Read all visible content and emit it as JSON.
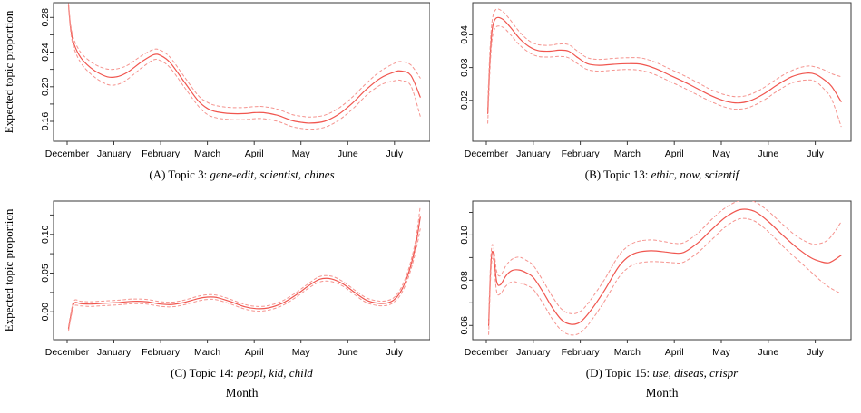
{
  "figure": {
    "ylabel": "Expected topic proportion",
    "xlabel": "Month",
    "colors": {
      "mean_line": "#f0564f",
      "ci_line": "#f5938e",
      "axis": "#3a3a3a",
      "text": "#000000",
      "background": "#ffffff"
    }
  },
  "chart_data": [
    {
      "id": "A",
      "type": "line",
      "caption": {
        "prefix": "(A) Topic 3:",
        "keywords": "gene-edit, scientist, chines"
      },
      "has_ylabel": true,
      "xlim": [
        -0.29,
        7.76
      ],
      "ylim": [
        0.137,
        0.297
      ],
      "x_ticks": [
        {
          "pos": 0,
          "label": "December"
        },
        {
          "pos": 1,
          "label": "January"
        },
        {
          "pos": 2,
          "label": "February"
        },
        {
          "pos": 3,
          "label": "March"
        },
        {
          "pos": 4,
          "label": "April"
        },
        {
          "pos": 5,
          "label": "May"
        },
        {
          "pos": 6,
          "label": "June"
        },
        {
          "pos": 7,
          "label": "July"
        }
      ],
      "y_ticks": [
        {
          "pos": 0.16,
          "label": "0.16"
        },
        {
          "pos": 0.18,
          "label": ""
        },
        {
          "pos": 0.2,
          "label": "0.20"
        },
        {
          "pos": 0.22,
          "label": ""
        },
        {
          "pos": 0.24,
          "label": "0.24"
        },
        {
          "pos": 0.26,
          "label": ""
        },
        {
          "pos": 0.28,
          "label": "0.28"
        }
      ],
      "x": [
        0.03,
        0.08,
        0.15,
        0.3,
        0.5,
        0.7,
        0.9,
        1.1,
        1.3,
        1.6,
        1.85,
        2.0,
        2.2,
        2.5,
        2.8,
        3.0,
        3.2,
        3.5,
        3.8,
        4.0,
        4.2,
        4.5,
        4.8,
        5.0,
        5.2,
        5.5,
        5.8,
        6.1,
        6.4,
        6.7,
        7.0,
        7.15,
        7.35,
        7.55
      ],
      "series": [
        {
          "name": "expected proportion",
          "style": "solid",
          "values": [
            0.294,
            0.266,
            0.249,
            0.233,
            0.222,
            0.215,
            0.211,
            0.212,
            0.217,
            0.229,
            0.237,
            0.236,
            0.228,
            0.206,
            0.184,
            0.175,
            0.171,
            0.169,
            0.169,
            0.17,
            0.17,
            0.167,
            0.161,
            0.159,
            0.158,
            0.16,
            0.168,
            0.181,
            0.197,
            0.21,
            0.217,
            0.218,
            0.213,
            0.188
          ]
        },
        {
          "name": "upper 95% CI",
          "style": "dashed",
          "values": [
            0.296,
            0.27,
            0.254,
            0.239,
            0.229,
            0.223,
            0.22,
            0.221,
            0.225,
            0.236,
            0.243,
            0.242,
            0.234,
            0.212,
            0.19,
            0.182,
            0.178,
            0.176,
            0.176,
            0.177,
            0.177,
            0.174,
            0.168,
            0.166,
            0.165,
            0.167,
            0.175,
            0.188,
            0.204,
            0.218,
            0.227,
            0.229,
            0.225,
            0.21
          ]
        },
        {
          "name": "lower 95% CI",
          "style": "dashed",
          "values": [
            0.292,
            0.262,
            0.244,
            0.227,
            0.215,
            0.207,
            0.202,
            0.203,
            0.209,
            0.222,
            0.231,
            0.23,
            0.222,
            0.2,
            0.178,
            0.168,
            0.164,
            0.162,
            0.162,
            0.163,
            0.163,
            0.16,
            0.154,
            0.152,
            0.151,
            0.153,
            0.161,
            0.174,
            0.19,
            0.202,
            0.207,
            0.207,
            0.201,
            0.166
          ]
        }
      ]
    },
    {
      "id": "B",
      "type": "line",
      "caption": {
        "prefix": "(B) Topic 13:",
        "keywords": "ethic, now, scientif"
      },
      "has_ylabel": false,
      "xlim": [
        -0.29,
        7.76
      ],
      "ylim": [
        0.0075,
        0.0498
      ],
      "x_ticks": [
        {
          "pos": 0,
          "label": "December"
        },
        {
          "pos": 1,
          "label": "January"
        },
        {
          "pos": 2,
          "label": "February"
        },
        {
          "pos": 3,
          "label": "March"
        },
        {
          "pos": 4,
          "label": "April"
        },
        {
          "pos": 5,
          "label": "May"
        },
        {
          "pos": 6,
          "label": "June"
        },
        {
          "pos": 7,
          "label": "July"
        }
      ],
      "y_ticks": [
        {
          "pos": 0.02,
          "label": "0.02"
        },
        {
          "pos": 0.03,
          "label": "0.03"
        },
        {
          "pos": 0.04,
          "label": "0.04"
        }
      ],
      "x": [
        0.03,
        0.07,
        0.12,
        0.2,
        0.35,
        0.5,
        0.7,
        0.9,
        1.1,
        1.35,
        1.55,
        1.75,
        1.95,
        2.15,
        2.4,
        2.7,
        3.0,
        3.3,
        3.6,
        3.9,
        4.2,
        4.5,
        4.8,
        5.1,
        5.35,
        5.6,
        5.9,
        6.2,
        6.5,
        6.8,
        7.0,
        7.2,
        7.35,
        7.55
      ],
      "series": [
        {
          "name": "expected proportion",
          "style": "solid",
          "values": [
            0.016,
            0.03,
            0.041,
            0.045,
            0.0447,
            0.0425,
            0.039,
            0.0365,
            0.0352,
            0.035,
            0.0353,
            0.035,
            0.033,
            0.0312,
            0.0307,
            0.031,
            0.0312,
            0.031,
            0.0297,
            0.0277,
            0.0257,
            0.0235,
            0.0213,
            0.0197,
            0.0192,
            0.0198,
            0.0219,
            0.0248,
            0.0272,
            0.0283,
            0.028,
            0.0262,
            0.0242,
            0.0196
          ]
        },
        {
          "name": "upper 95% CI",
          "style": "dashed",
          "values": [
            0.019,
            0.033,
            0.0438,
            0.0477,
            0.0471,
            0.0447,
            0.041,
            0.0383,
            0.037,
            0.0368,
            0.0372,
            0.037,
            0.0349,
            0.033,
            0.0325,
            0.0328,
            0.033,
            0.0329,
            0.0316,
            0.0296,
            0.0276,
            0.0254,
            0.0231,
            0.0216,
            0.0211,
            0.0217,
            0.0238,
            0.0267,
            0.0291,
            0.0304,
            0.0302,
            0.0292,
            0.0281,
            0.0272
          ]
        },
        {
          "name": "lower 95% CI",
          "style": "dashed",
          "values": [
            0.013,
            0.027,
            0.0382,
            0.0423,
            0.0423,
            0.0403,
            0.037,
            0.0347,
            0.0334,
            0.0332,
            0.0334,
            0.033,
            0.0311,
            0.0294,
            0.0289,
            0.0292,
            0.0294,
            0.0291,
            0.0278,
            0.0258,
            0.0238,
            0.0216,
            0.0195,
            0.0178,
            0.0173,
            0.0179,
            0.02,
            0.0229,
            0.0253,
            0.0262,
            0.0258,
            0.0232,
            0.0203,
            0.012
          ]
        }
      ]
    },
    {
      "id": "C",
      "type": "line",
      "caption": {
        "prefix": "(C) Topic 14:",
        "keywords": "peopl, kid, child"
      },
      "has_ylabel": true,
      "xlim": [
        -0.29,
        7.76
      ],
      "ylim": [
        -0.036,
        0.143
      ],
      "x_ticks": [
        {
          "pos": 0,
          "label": "December"
        },
        {
          "pos": 1,
          "label": "January"
        },
        {
          "pos": 2,
          "label": "February"
        },
        {
          "pos": 3,
          "label": "March"
        },
        {
          "pos": 4,
          "label": "April"
        },
        {
          "pos": 5,
          "label": "May"
        },
        {
          "pos": 6,
          "label": "June"
        },
        {
          "pos": 7,
          "label": "July"
        }
      ],
      "y_ticks": [
        {
          "pos": 0.0,
          "label": "0.00"
        },
        {
          "pos": 0.025,
          "label": ""
        },
        {
          "pos": 0.05,
          "label": "0.05"
        },
        {
          "pos": 0.075,
          "label": ""
        },
        {
          "pos": 0.1,
          "label": "0.10"
        },
        {
          "pos": 0.125,
          "label": ""
        }
      ],
      "x": [
        0.03,
        0.08,
        0.15,
        0.3,
        0.5,
        0.8,
        1.1,
        1.4,
        1.7,
        2.0,
        2.25,
        2.5,
        2.8,
        3.0,
        3.2,
        3.5,
        3.8,
        4.05,
        4.3,
        4.6,
        4.9,
        5.15,
        5.4,
        5.65,
        5.9,
        6.15,
        6.4,
        6.65,
        6.85,
        7.0,
        7.15,
        7.3,
        7.45,
        7.55
      ],
      "series": [
        {
          "name": "expected proportion",
          "style": "solid",
          "values": [
            -0.022,
            -0.005,
            0.011,
            0.0105,
            0.01,
            0.011,
            0.012,
            0.0135,
            0.013,
            0.01,
            0.0095,
            0.012,
            0.017,
            0.019,
            0.0185,
            0.013,
            0.0065,
            0.004,
            0.005,
            0.011,
            0.022,
            0.033,
            0.042,
            0.0425,
            0.036,
            0.025,
            0.015,
            0.011,
            0.0115,
            0.016,
            0.028,
            0.05,
            0.085,
            0.122
          ]
        },
        {
          "name": "upper 95% CI",
          "style": "dashed",
          "values": [
            -0.019,
            -0.002,
            0.0145,
            0.0135,
            0.013,
            0.014,
            0.015,
            0.0165,
            0.016,
            0.013,
            0.0125,
            0.015,
            0.02,
            0.022,
            0.0215,
            0.016,
            0.0095,
            0.007,
            0.008,
            0.014,
            0.025,
            0.036,
            0.0455,
            0.046,
            0.039,
            0.028,
            0.018,
            0.014,
            0.0145,
            0.019,
            0.032,
            0.055,
            0.092,
            0.136
          ]
        },
        {
          "name": "lower 95% CI",
          "style": "dashed",
          "values": [
            -0.025,
            -0.008,
            0.0075,
            0.0075,
            0.007,
            0.008,
            0.009,
            0.0105,
            0.01,
            0.007,
            0.0065,
            0.009,
            0.014,
            0.016,
            0.0155,
            0.01,
            0.0035,
            0.001,
            0.002,
            0.008,
            0.019,
            0.03,
            0.0385,
            0.039,
            0.033,
            0.022,
            0.012,
            0.008,
            0.0085,
            0.013,
            0.024,
            0.045,
            0.077,
            0.107
          ]
        }
      ]
    },
    {
      "id": "D",
      "type": "line",
      "caption": {
        "prefix": "(D) Topic 15:",
        "keywords": "use, diseas, crispr"
      },
      "has_ylabel": false,
      "xlim": [
        -0.29,
        7.76
      ],
      "ylim": [
        0.0537,
        0.115
      ],
      "x_ticks": [
        {
          "pos": 0,
          "label": "December"
        },
        {
          "pos": 1,
          "label": "January"
        },
        {
          "pos": 2,
          "label": "February"
        },
        {
          "pos": 3,
          "label": "March"
        },
        {
          "pos": 4,
          "label": "April"
        },
        {
          "pos": 5,
          "label": "May"
        },
        {
          "pos": 6,
          "label": "June"
        },
        {
          "pos": 7,
          "label": "July"
        }
      ],
      "y_ticks": [
        {
          "pos": 0.06,
          "label": "0.06"
        },
        {
          "pos": 0.07,
          "label": ""
        },
        {
          "pos": 0.08,
          "label": "0.08"
        },
        {
          "pos": 0.09,
          "label": ""
        },
        {
          "pos": 0.1,
          "label": "0.10"
        },
        {
          "pos": 0.11,
          "label": ""
        }
      ],
      "x": [
        0.05,
        0.1,
        0.15,
        0.22,
        0.3,
        0.42,
        0.55,
        0.7,
        0.85,
        1.0,
        1.2,
        1.4,
        1.6,
        1.8,
        2.0,
        2.2,
        2.5,
        2.8,
        3.0,
        3.2,
        3.5,
        3.8,
        4.0,
        4.2,
        4.5,
        4.8,
        5.1,
        5.4,
        5.7,
        6.0,
        6.3,
        6.6,
        6.9,
        7.1,
        7.3,
        7.55
      ],
      "series": [
        {
          "name": "expected proportion",
          "style": "solid",
          "values": [
            0.06,
            0.088,
            0.092,
            0.0795,
            0.078,
            0.082,
            0.0843,
            0.0845,
            0.0833,
            0.0812,
            0.075,
            0.068,
            0.0625,
            0.0605,
            0.0615,
            0.066,
            0.075,
            0.0855,
            0.09,
            0.0922,
            0.093,
            0.0925,
            0.092,
            0.0923,
            0.0965,
            0.1025,
            0.108,
            0.1112,
            0.1105,
            0.106,
            0.1,
            0.0945,
            0.09,
            0.0883,
            0.0878,
            0.091
          ]
        },
        {
          "name": "upper 95% CI",
          "style": "dashed",
          "values": [
            0.064,
            0.0915,
            0.095,
            0.084,
            0.082,
            0.0865,
            0.0893,
            0.0902,
            0.0888,
            0.0865,
            0.08,
            0.073,
            0.0672,
            0.0652,
            0.0662,
            0.0708,
            0.0798,
            0.0903,
            0.0948,
            0.097,
            0.0978,
            0.097,
            0.0963,
            0.0966,
            0.1008,
            0.107,
            0.1122,
            0.1152,
            0.1148,
            0.1105,
            0.1048,
            0.0995,
            0.0962,
            0.0962,
            0.0985,
            0.1058
          ]
        },
        {
          "name": "lower 95% CI",
          "style": "dashed",
          "values": [
            0.056,
            0.0845,
            0.089,
            0.075,
            0.074,
            0.0775,
            0.0793,
            0.0788,
            0.0778,
            0.0759,
            0.07,
            0.063,
            0.0578,
            0.0558,
            0.0568,
            0.0612,
            0.0702,
            0.0807,
            0.0852,
            0.0874,
            0.0882,
            0.088,
            0.0877,
            0.088,
            0.0922,
            0.098,
            0.1038,
            0.1072,
            0.1062,
            0.1015,
            0.0952,
            0.0895,
            0.0838,
            0.08,
            0.0768,
            0.074
          ]
        }
      ]
    }
  ]
}
